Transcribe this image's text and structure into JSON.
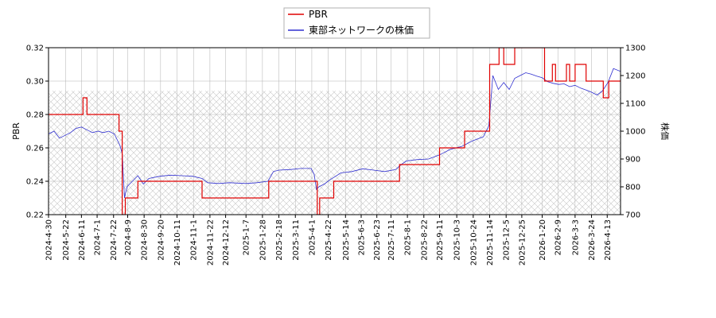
{
  "chart_data": {
    "type": "line",
    "title": "",
    "xlabel": "",
    "ylabel_left": "PBR",
    "ylabel_right": "株価",
    "ylim_left": [
      0.22,
      0.32
    ],
    "ylim_right": [
      700,
      1300
    ],
    "yticks_left": [
      "0.22",
      "0.24",
      "0.26",
      "0.28",
      "0.30",
      "0.32"
    ],
    "yticks_right": [
      "700",
      "800",
      "900",
      "1000",
      "1100",
      "1200",
      "1300"
    ],
    "xlim": [
      "2024-04-30",
      "2026-04-30"
    ],
    "xticks": [
      "2024-4-30",
      "2024-5-22",
      "2024-6-11",
      "2024-7-1",
      "2024-7-22",
      "2024-8-9",
      "2024-8-30",
      "2024-9-20",
      "2024-10-11",
      "2024-11-1",
      "2024-11-22",
      "2024-12-12",
      "2025-1-7",
      "2025-1-28",
      "2025-2-18",
      "2025-3-11",
      "2025-4-1",
      "2025-4-22",
      "2025-5-14",
      "2025-6-3",
      "2025-6-23",
      "2025-7-11",
      "2025-8-1",
      "2025-8-22",
      "2025-9-11",
      "2025-10-3",
      "2025-10-24",
      "2025-11-14",
      "2025-12-5",
      "2025-12-25",
      "2026-1-20",
      "2026-2-9",
      "2026-3-3",
      "2026-3-24",
      "2026-4-13"
    ],
    "grid": true,
    "legend_placement": "top-center",
    "hatched_band_right": [
      700,
      1145
    ],
    "colors": {
      "pbr": "#e00000",
      "price": "#3030d0",
      "grid": "#b0b0b0",
      "hatch": "#c8c8c8"
    },
    "series": [
      {
        "name": "PBR",
        "axis": "left",
        "points": [
          [
            "2024-04-30",
            0.28
          ],
          [
            "2024-06-13",
            0.28
          ],
          [
            "2024-06-13",
            0.29
          ],
          [
            "2024-06-18",
            0.29
          ],
          [
            "2024-06-18",
            0.28
          ],
          [
            "2024-07-29",
            0.28
          ],
          [
            "2024-07-29",
            0.27
          ],
          [
            "2024-08-02",
            0.27
          ],
          [
            "2024-08-02",
            0.22
          ],
          [
            "2024-08-06",
            0.22
          ],
          [
            "2024-08-06",
            0.23
          ],
          [
            "2024-08-22",
            0.23
          ],
          [
            "2024-08-22",
            0.24
          ],
          [
            "2024-11-12",
            0.24
          ],
          [
            "2024-11-12",
            0.23
          ],
          [
            "2025-02-05",
            0.23
          ],
          [
            "2025-02-05",
            0.24
          ],
          [
            "2025-04-08",
            0.24
          ],
          [
            "2025-04-08",
            0.22
          ],
          [
            "2025-04-11",
            0.22
          ],
          [
            "2025-04-11",
            0.23
          ],
          [
            "2025-04-29",
            0.23
          ],
          [
            "2025-04-29",
            0.24
          ],
          [
            "2025-07-22",
            0.24
          ],
          [
            "2025-07-22",
            0.25
          ],
          [
            "2025-09-11",
            0.25
          ],
          [
            "2025-09-11",
            0.26
          ],
          [
            "2025-10-13",
            0.26
          ],
          [
            "2025-10-13",
            0.27
          ],
          [
            "2025-11-14",
            0.27
          ],
          [
            "2025-11-14",
            0.31
          ],
          [
            "2025-11-26",
            0.31
          ],
          [
            "2025-11-26",
            0.32
          ],
          [
            "2025-12-02",
            0.32
          ],
          [
            "2025-12-02",
            0.31
          ],
          [
            "2025-12-16",
            0.31
          ],
          [
            "2025-12-16",
            0.32
          ],
          [
            "2026-01-23",
            0.32
          ],
          [
            "2026-01-23",
            0.3
          ],
          [
            "2026-02-02",
            0.3
          ],
          [
            "2026-02-02",
            0.31
          ],
          [
            "2026-02-06",
            0.31
          ],
          [
            "2026-02-06",
            0.3
          ],
          [
            "2026-02-20",
            0.3
          ],
          [
            "2026-02-20",
            0.31
          ],
          [
            "2026-02-24",
            0.31
          ],
          [
            "2026-02-24",
            0.3
          ],
          [
            "2026-03-03",
            0.3
          ],
          [
            "2026-03-03",
            0.31
          ],
          [
            "2026-03-17",
            0.31
          ],
          [
            "2026-03-17",
            0.3
          ],
          [
            "2026-04-08",
            0.3
          ],
          [
            "2026-04-08",
            0.29
          ],
          [
            "2026-04-15",
            0.29
          ],
          [
            "2026-04-15",
            0.3
          ],
          [
            "2026-04-30",
            0.3
          ]
        ]
      },
      {
        "name": "東部ネットワークの株価",
        "axis": "right",
        "points": [
          [
            "2024-04-30",
            990
          ],
          [
            "2024-05-07",
            1000
          ],
          [
            "2024-05-14",
            975
          ],
          [
            "2024-05-21",
            985
          ],
          [
            "2024-05-28",
            995
          ],
          [
            "2024-06-04",
            1010
          ],
          [
            "2024-06-11",
            1015
          ],
          [
            "2024-06-18",
            1005
          ],
          [
            "2024-06-25",
            995
          ],
          [
            "2024-07-02",
            1000
          ],
          [
            "2024-07-09",
            995
          ],
          [
            "2024-07-16",
            1000
          ],
          [
            "2024-07-23",
            990
          ],
          [
            "2024-07-30",
            950
          ],
          [
            "2024-08-02",
            920
          ],
          [
            "2024-08-05",
            760
          ],
          [
            "2024-08-08",
            800
          ],
          [
            "2024-08-15",
            820
          ],
          [
            "2024-08-22",
            840
          ],
          [
            "2024-08-29",
            810
          ],
          [
            "2024-09-05",
            830
          ],
          [
            "2024-09-19",
            838
          ],
          [
            "2024-10-03",
            842
          ],
          [
            "2024-10-17",
            840
          ],
          [
            "2024-10-31",
            838
          ],
          [
            "2024-11-12",
            830
          ],
          [
            "2024-11-19",
            815
          ],
          [
            "2024-12-03",
            812
          ],
          [
            "2024-12-17",
            815
          ],
          [
            "2025-01-07",
            812
          ],
          [
            "2025-01-21",
            815
          ],
          [
            "2025-02-04",
            820
          ],
          [
            "2025-02-11",
            855
          ],
          [
            "2025-02-18",
            860
          ],
          [
            "2025-03-04",
            862
          ],
          [
            "2025-03-18",
            866
          ],
          [
            "2025-03-31",
            866
          ],
          [
            "2025-04-04",
            845
          ],
          [
            "2025-04-07",
            790
          ],
          [
            "2025-04-10",
            800
          ],
          [
            "2025-04-17",
            810
          ],
          [
            "2025-04-24",
            825
          ],
          [
            "2025-05-08",
            850
          ],
          [
            "2025-05-22",
            855
          ],
          [
            "2025-06-05",
            865
          ],
          [
            "2025-06-19",
            860
          ],
          [
            "2025-07-03",
            855
          ],
          [
            "2025-07-17",
            862
          ],
          [
            "2025-07-24",
            880
          ],
          [
            "2025-07-31",
            893
          ],
          [
            "2025-08-14",
            898
          ],
          [
            "2025-08-28",
            900
          ],
          [
            "2025-09-11",
            915
          ],
          [
            "2025-09-25",
            935
          ],
          [
            "2025-10-09",
            945
          ],
          [
            "2025-10-23",
            965
          ],
          [
            "2025-11-06",
            980
          ],
          [
            "2025-11-13",
            1020
          ],
          [
            "2025-11-18",
            1200
          ],
          [
            "2025-11-25",
            1150
          ],
          [
            "2025-12-02",
            1175
          ],
          [
            "2025-12-09",
            1150
          ],
          [
            "2025-12-16",
            1190
          ],
          [
            "2025-12-23",
            1200
          ],
          [
            "2025-12-30",
            1210
          ],
          [
            "2026-01-06",
            1205
          ],
          [
            "2026-01-13",
            1198
          ],
          [
            "2026-01-20",
            1192
          ],
          [
            "2026-01-27",
            1178
          ],
          [
            "2026-02-03",
            1172
          ],
          [
            "2026-02-10",
            1168
          ],
          [
            "2026-02-17",
            1170
          ],
          [
            "2026-02-24",
            1160
          ],
          [
            "2026-03-03",
            1165
          ],
          [
            "2026-03-10",
            1155
          ],
          [
            "2026-03-17",
            1148
          ],
          [
            "2026-03-24",
            1140
          ],
          [
            "2026-03-31",
            1130
          ],
          [
            "2026-04-07",
            1145
          ],
          [
            "2026-04-14",
            1175
          ],
          [
            "2026-04-21",
            1225
          ],
          [
            "2026-04-30",
            1215
          ]
        ]
      }
    ]
  }
}
